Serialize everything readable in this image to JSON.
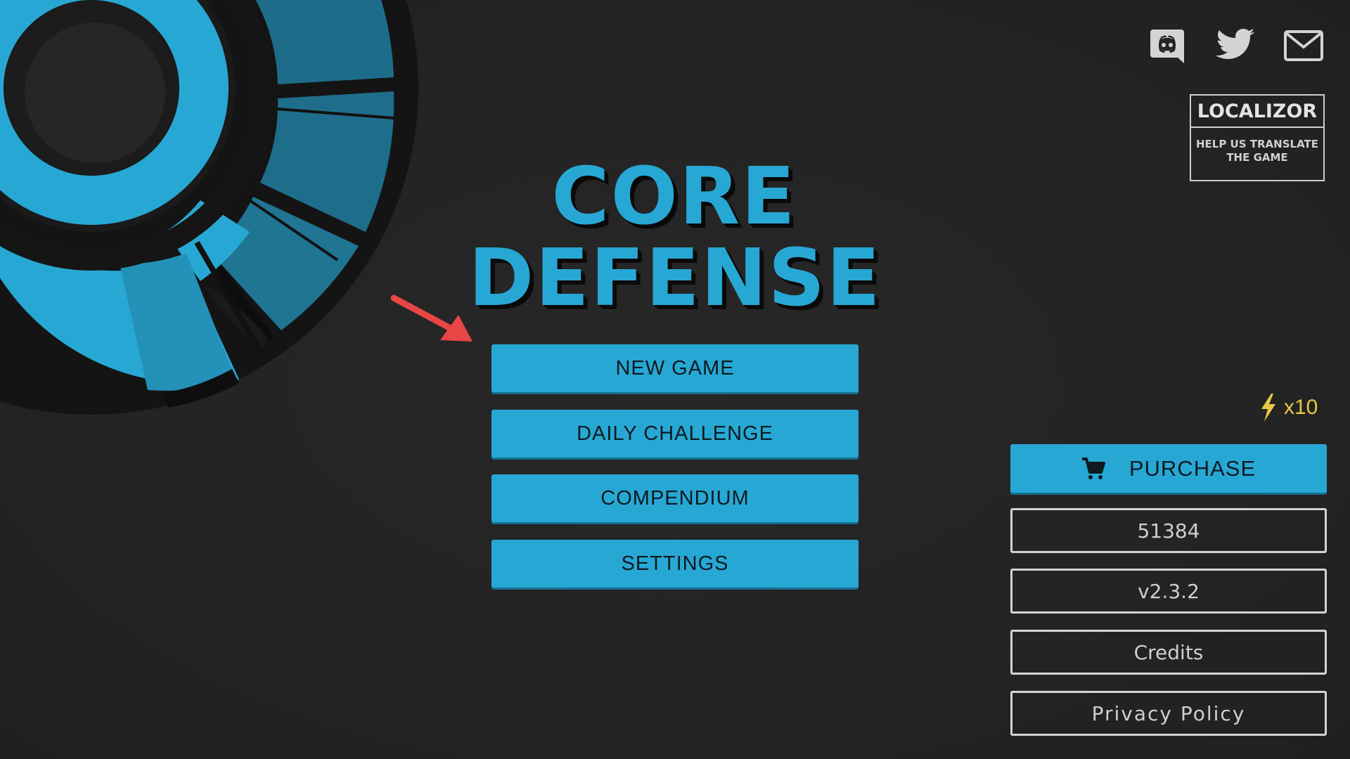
{
  "game": {
    "title_line1": "CORE",
    "title_line2": "DEFENSE"
  },
  "menu": {
    "new_game": "NEW GAME",
    "daily_challenge": "DAILY CHALLENGE",
    "compendium": "COMPENDIUM",
    "settings": "SETTINGS"
  },
  "social": {
    "discord_icon": "discord-icon",
    "twitter_icon": "twitter-icon",
    "mail_icon": "mail-icon"
  },
  "localizor": {
    "brand": "LOCALIZOR",
    "help_text": "HELP US TRANSLATE THE GAME"
  },
  "energy": {
    "icon": "lightning-icon",
    "count": "x10"
  },
  "sidebar": {
    "purchase_label": "PURCHASE",
    "purchase_icon": "cart-icon",
    "score": "51384",
    "version": "v2.3.2",
    "credits": "Credits",
    "privacy_policy": "Privacy Policy"
  },
  "colors": {
    "accent": "#27a8d4",
    "background": "#242424",
    "energy": "#e8c846",
    "arrow": "#e84545"
  }
}
